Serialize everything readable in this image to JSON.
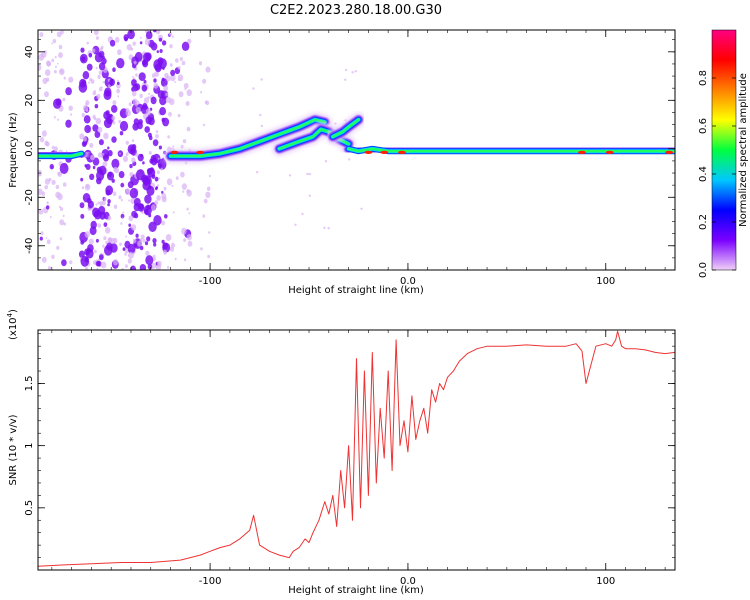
{
  "title": "C2E2.2023.280.18.00.G30",
  "chart_data": [
    {
      "type": "heatmap",
      "xlabel": "Height of straight line (km)",
      "ylabel": "Frequency (Hz)",
      "xlim": [
        -187,
        135
      ],
      "ylim": [
        -50,
        49
      ],
      "x_ticks": [
        -100,
        0,
        100
      ],
      "y_ticks": [
        -40,
        -20,
        0,
        20,
        40
      ],
      "colorbar": {
        "label": "Normalized spectral amplitude",
        "range": [
          0,
          1
        ],
        "ticks": [
          0.0,
          0.2,
          0.4,
          0.6,
          0.8
        ],
        "colors": [
          "#f0d0f8",
          "#7a00ff",
          "#0000ff",
          "#00c8ff",
          "#00ff40",
          "#ffff00",
          "#ff8000",
          "#ff0000",
          "#ff0080"
        ]
      },
      "traces": [
        {
          "name": "",
          "x": [
            -187,
            -178,
            -170,
            -165
          ],
          "y": [
            -3,
            -3,
            -3,
            -2
          ]
        },
        {
          "name": "",
          "x": [
            -120,
            -105,
            -95,
            -85,
            -75,
            -65,
            -55,
            -47,
            -42
          ],
          "y": [
            -3,
            -3,
            -2,
            0,
            3,
            6,
            9,
            12,
            11
          ]
        },
        {
          "name": "",
          "x": [
            -65,
            -55,
            -48,
            -44,
            -40,
            -35,
            -30
          ],
          "y": [
            0,
            3,
            5,
            8,
            7,
            4,
            2
          ]
        },
        {
          "name": "",
          "x": [
            -38,
            -33,
            -30,
            -25
          ],
          "y": [
            5,
            7,
            9,
            12
          ]
        },
        {
          "name": "",
          "x": [
            -30,
            -25,
            -18,
            -10,
            0,
            20,
            60,
            100,
            135
          ],
          "y": [
            0,
            -1,
            0,
            -1,
            -1,
            -1,
            -1,
            -1,
            -1
          ]
        }
      ]
    },
    {
      "type": "line",
      "xlabel": "Height of straight line (km)",
      "ylabel": "SNR (10 * v/v)",
      "multiplier_label": "(x10",
      "multiplier_exponent": "4",
      "multiplier_suffix": ")",
      "xlim": [
        -187,
        135
      ],
      "ylim": [
        0,
        1.93
      ],
      "x_ticks": [
        -100,
        0,
        100
      ],
      "y_ticks": [
        0.5,
        1.0,
        1.5
      ],
      "line_color": "#ee3333",
      "series": [
        {
          "name": "",
          "x": [
            -187,
            -175,
            -160,
            -145,
            -130,
            -115,
            -105,
            -100,
            -95,
            -90,
            -85,
            -80,
            -78,
            -75,
            -70,
            -65,
            -60,
            -58,
            -55,
            -52,
            -50,
            -48,
            -45,
            -42,
            -40,
            -38,
            -36,
            -34,
            -32,
            -30,
            -28,
            -26,
            -24,
            -22,
            -20,
            -18,
            -16,
            -14,
            -12,
            -10,
            -8,
            -6,
            -4,
            -2,
            0,
            2,
            4,
            6,
            8,
            10,
            12,
            14,
            16,
            18,
            20,
            23,
            26,
            30,
            35,
            40,
            50,
            60,
            70,
            80,
            85,
            88,
            90,
            95,
            100,
            103,
            105,
            106,
            108,
            110,
            115,
            120,
            125,
            130,
            135
          ],
          "y": [
            0.03,
            0.04,
            0.05,
            0.06,
            0.06,
            0.08,
            0.12,
            0.15,
            0.18,
            0.2,
            0.25,
            0.32,
            0.44,
            0.2,
            0.15,
            0.12,
            0.1,
            0.15,
            0.18,
            0.25,
            0.22,
            0.3,
            0.4,
            0.55,
            0.45,
            0.6,
            0.35,
            0.8,
            0.5,
            1.0,
            0.4,
            1.7,
            0.5,
            1.6,
            0.6,
            1.75,
            0.7,
            1.3,
            0.9,
            1.6,
            0.8,
            1.85,
            1.0,
            1.2,
            0.95,
            1.4,
            1.05,
            1.2,
            1.3,
            1.1,
            1.45,
            1.35,
            1.5,
            1.45,
            1.55,
            1.6,
            1.68,
            1.74,
            1.78,
            1.8,
            1.8,
            1.81,
            1.8,
            1.8,
            1.82,
            1.76,
            1.5,
            1.8,
            1.82,
            1.8,
            1.85,
            1.92,
            1.8,
            1.78,
            1.78,
            1.77,
            1.75,
            1.74,
            1.75
          ]
        }
      ]
    }
  ]
}
